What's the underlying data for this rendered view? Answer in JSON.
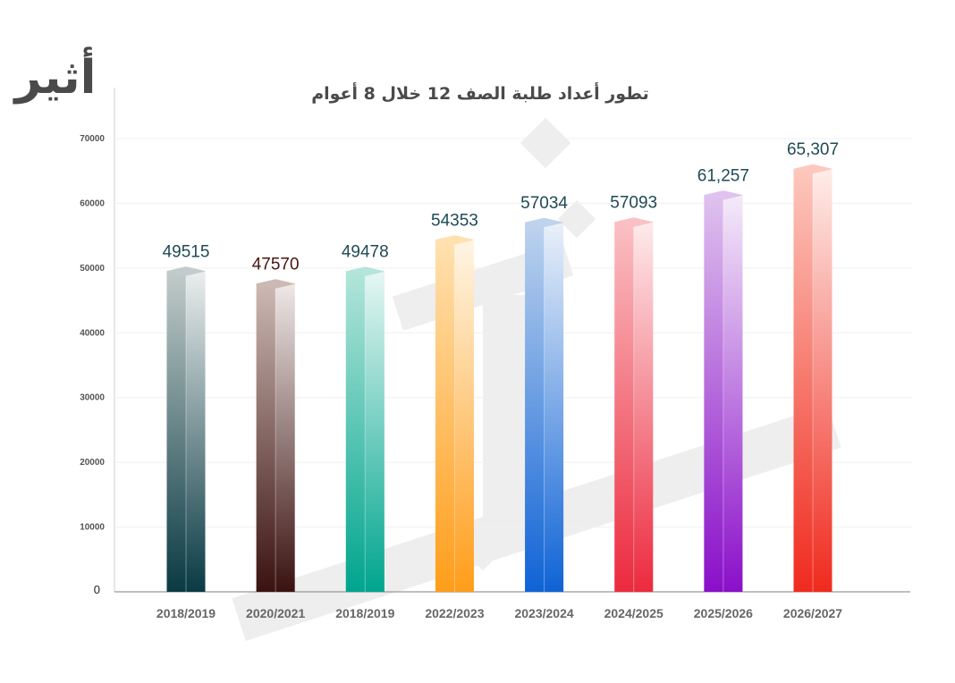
{
  "brand": {
    "logo_text": "أثير"
  },
  "chart_data": {
    "type": "bar",
    "title": "تطور أعداد طلبة الصف 12 خلال 8 أعوام",
    "categories": [
      "2018/2019",
      "2020/2021",
      "2018/2019",
      "2022/2023",
      "2023/2024",
      "2024/2025",
      "2025/2026",
      "2026/2027"
    ],
    "values": [
      49515,
      47570,
      49478,
      54353,
      57034,
      57093,
      61257,
      65307
    ],
    "value_labels": [
      "49515",
      "47570",
      "49478",
      "54353",
      "57034",
      "57093",
      "61,257",
      "65,307"
    ],
    "ylim": [
      0,
      70000
    ],
    "yticks": [
      "0",
      "10000",
      "20000",
      "30000",
      "40000",
      "50000",
      "60000",
      "70000"
    ],
    "grid": true,
    "xlabel": "",
    "ylabel": "",
    "colors": [
      {
        "bottom": "#0a3a44",
        "top": "#c2ccca",
        "label": "#1f4a55"
      },
      {
        "bottom": "#3a1210",
        "top": "#cdb9b4",
        "label": "#4a1410"
      },
      {
        "bottom": "#00a58e",
        "top": "#b3e5da",
        "label": "#1f4a55"
      },
      {
        "bottom": "#ff9d1a",
        "top": "#ffe1b0",
        "label": "#1f4a55"
      },
      {
        "bottom": "#0f63d6",
        "top": "#bed3ee",
        "label": "#1f4a55"
      },
      {
        "bottom": "#ec2a3e",
        "top": "#fac0c4",
        "label": "#1f4a55"
      },
      {
        "bottom": "#8a0fc9",
        "top": "#dfc2ee",
        "label": "#1f4a55"
      },
      {
        "bottom": "#f02a1e",
        "top": "#fdc8bd",
        "label": "#1f4a55"
      }
    ]
  }
}
